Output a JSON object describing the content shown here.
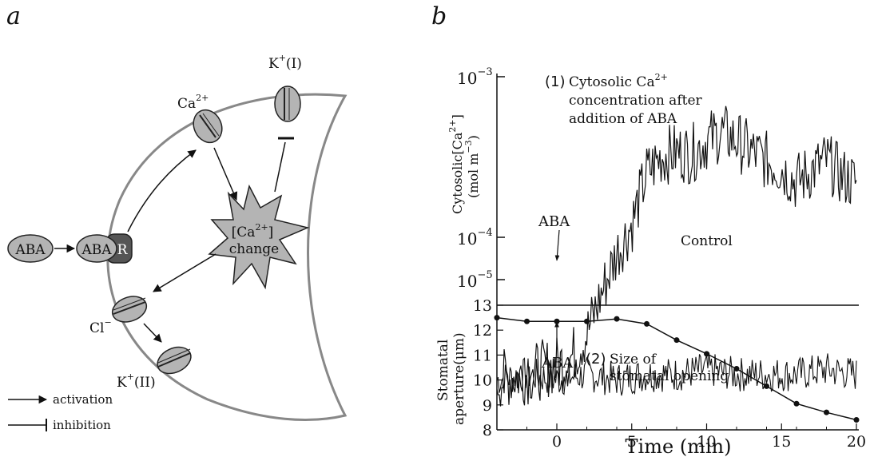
{
  "panel_a": {
    "label": "a",
    "nodes": {
      "aba_free": "ABA",
      "aba_bound": "ABA",
      "receptor": "R",
      "ca_channel": "Ca",
      "ca_channel_sup": "2+",
      "k_in_channel": "K",
      "k_in_sup": "+",
      "k_in_suffix": "(I)",
      "ca_change_pre": "[Ca",
      "ca_change_sup": "2+",
      "ca_change_post": "]",
      "ca_change_word": "change",
      "cl_channel": "Cl",
      "cl_sup": "−",
      "k_out_channel": "K",
      "k_out_sup": "+",
      "k_out_suffix": "(II)"
    },
    "legend": {
      "activation": "activation",
      "inhibition": "inhibition"
    }
  },
  "panel_b": {
    "label": "b",
    "top_chart": {
      "ylabel_pre": "Cytosolic[Ca",
      "ylabel_sup": "2+",
      "ylabel_post": "]",
      "ylabel_units": "(mol m",
      "ylabel_units_sup": "−3",
      "ylabel_units_post": ")",
      "ytick_base": "10",
      "ytick_exponents": [
        "−3",
        "−4",
        "−5"
      ],
      "annotation_num": "(1)",
      "annotation_line1_pre": "Cytosolic Ca",
      "annotation_line1_sup": "2+",
      "annotation_line2": "concentration after",
      "annotation_line3": "addition of ABA",
      "aba_marker": "ABA",
      "control_label": "Control"
    },
    "bottom_chart": {
      "ylabel_line1": "Stomatal",
      "ylabel_line2": "aperture(μm)",
      "yticks": [
        "13",
        "12",
        "11",
        "10",
        "9",
        "8"
      ],
      "xticks": [
        "0",
        "5",
        "10",
        "15",
        "20"
      ],
      "xlabel": "Time (min)",
      "aba_marker": "ABA",
      "annotation_num": "(2)",
      "annotation_line1": "Size of",
      "annotation_line2": "stomatal opening"
    }
  },
  "chart_data": [
    {
      "type": "line",
      "scale": "log",
      "ylim": [
        1e-05,
        0.001
      ],
      "xlim": [
        -4,
        20
      ],
      "series": [
        {
          "name": "Control",
          "x": [
            -4,
            -2,
            0,
            2,
            4,
            6,
            8,
            10,
            12,
            14,
            16,
            18,
            20
          ],
          "values": [
            1.3e-05,
            1.4e-05,
            1.3e-05,
            1.4e-05,
            1.3e-05,
            1.4e-05,
            1.4e-05,
            1.5e-05,
            1.4e-05,
            1.4e-05,
            1.4e-05,
            1.5e-05,
            1.4e-05
          ]
        },
        {
          "name": "Cytosolic Ca2+ concentration after addition of ABA",
          "x": [
            -4,
            -2,
            0,
            1,
            2,
            3,
            4,
            5,
            6,
            7,
            8,
            9,
            10,
            11,
            12,
            13,
            14,
            15,
            16,
            17,
            18,
            19,
            20
          ],
          "values": [
            1.3e-05,
            1.4e-05,
            1.6e-05,
            1.8e-05,
            2.5e-05,
            4.5e-05,
            8e-05,
            0.00012,
            0.00025,
            0.00032,
            0.00034,
            0.00033,
            0.0004,
            0.00045,
            0.0004,
            0.00034,
            0.0003,
            0.00027,
            0.00022,
            0.00026,
            0.0003,
            0.00024,
            0.00022
          ]
        }
      ]
    },
    {
      "type": "line",
      "ylim": [
        8,
        13
      ],
      "xlim": [
        -4,
        20
      ],
      "xlabel": "Time (min)",
      "series": [
        {
          "name": "Size of stomatal opening",
          "x": [
            -4,
            -2,
            0,
            2,
            4,
            6,
            8,
            10,
            12,
            14,
            16,
            18,
            20
          ],
          "values": [
            12.5,
            12.35,
            12.35,
            12.35,
            12.45,
            12.25,
            11.6,
            11.05,
            10.45,
            9.75,
            9.05,
            8.7,
            8.4
          ]
        }
      ]
    }
  ]
}
